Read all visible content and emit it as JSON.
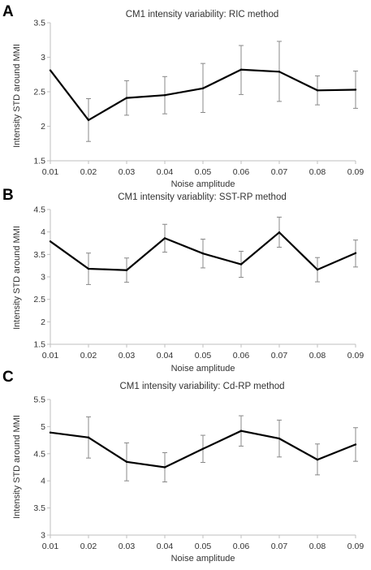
{
  "chart_data": [
    {
      "type": "line",
      "panel": "A",
      "title": "CM1 intensity variability: RIC method",
      "xlabel": "Noise amplitude",
      "ylabel": "Intensity STD around MMI",
      "x": [
        "0.01",
        "0.02",
        "0.03",
        "0.04",
        "0.05",
        "0.06",
        "0.07",
        "0.08",
        "0.09"
      ],
      "y_ticks": [
        "1.5",
        "2",
        "2.5",
        "3",
        "3.5"
      ],
      "ylim": [
        1.5,
        3.5
      ],
      "values": [
        2.81,
        2.09,
        2.41,
        2.45,
        2.55,
        2.82,
        2.79,
        2.52,
        2.53
      ],
      "err_low": [
        2.81,
        1.78,
        2.16,
        2.18,
        2.2,
        2.46,
        2.36,
        2.31,
        2.26
      ],
      "err_high": [
        2.81,
        2.4,
        2.66,
        2.72,
        2.91,
        3.17,
        3.23,
        2.73,
        2.8
      ],
      "grid": false,
      "line_color": "#000000",
      "error_color": "#888888"
    },
    {
      "type": "line",
      "panel": "B",
      "title": "CM1 intensity variablity: SST-RP method",
      "xlabel": "Noise amplitude",
      "ylabel": "Intensity STD around MMI",
      "x": [
        "0.01",
        "0.02",
        "0.03",
        "0.04",
        "0.05",
        "0.06",
        "0.07",
        "0.08",
        "0.09"
      ],
      "y_ticks": [
        "1.5",
        "2",
        "2.5",
        "3",
        "3.5",
        "4",
        "4.5"
      ],
      "ylim": [
        1.5,
        4.5
      ],
      "values": [
        3.79,
        3.18,
        3.15,
        3.86,
        3.52,
        3.28,
        3.99,
        3.16,
        3.53
      ],
      "err_low": [
        3.79,
        2.83,
        2.88,
        3.55,
        3.2,
        2.99,
        3.66,
        2.89,
        3.22
      ],
      "err_high": [
        3.79,
        3.53,
        3.42,
        4.17,
        3.84,
        3.57,
        4.33,
        3.43,
        3.82
      ],
      "grid": false,
      "line_color": "#000000",
      "error_color": "#888888"
    },
    {
      "type": "line",
      "panel": "C",
      "title": "CM1 intensity variability: Cd-RP method",
      "xlabel": "Noise amplitude",
      "ylabel": "Intensity STD around MMI",
      "x": [
        "0.01",
        "0.02",
        "0.03",
        "0.04",
        "0.05",
        "0.06",
        "0.07",
        "0.08",
        "0.09"
      ],
      "y_ticks": [
        "3",
        "3.5",
        "4",
        "4.5",
        "5",
        "5.5"
      ],
      "ylim": [
        3,
        5.5
      ],
      "values": [
        4.89,
        4.8,
        4.35,
        4.25,
        4.59,
        4.92,
        4.78,
        4.39,
        4.67
      ],
      "err_low": [
        4.89,
        4.42,
        4.0,
        3.98,
        4.34,
        4.64,
        4.44,
        4.11,
        4.36
      ],
      "err_high": [
        4.89,
        5.18,
        4.7,
        4.52,
        4.84,
        5.2,
        5.12,
        4.68,
        4.98
      ],
      "grid": false,
      "line_color": "#000000",
      "error_color": "#888888"
    }
  ]
}
